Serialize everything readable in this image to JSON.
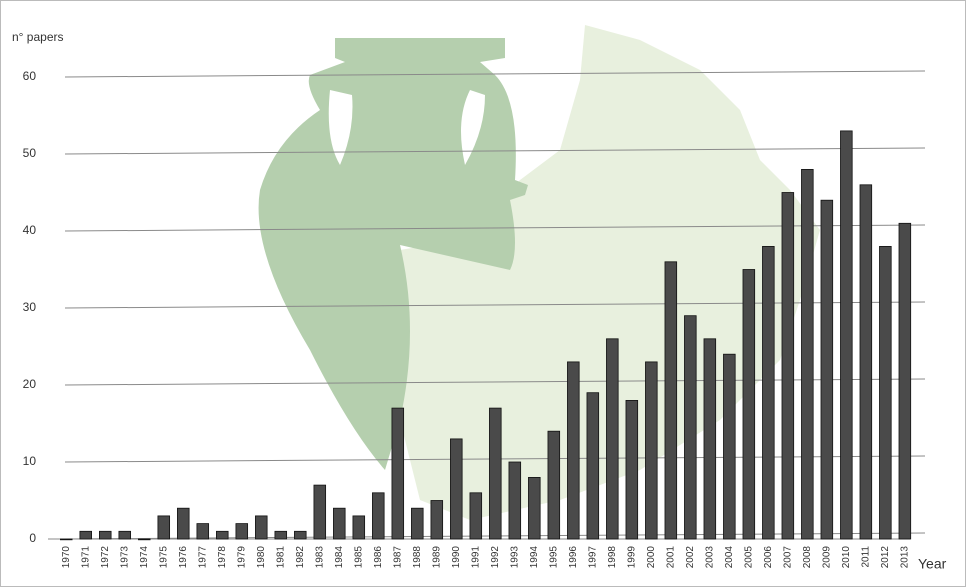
{
  "chart_data": {
    "type": "bar",
    "y_label": "n° papers",
    "x_label": "Year",
    "categories": [
      "1970",
      "1971",
      "1972",
      "1973",
      "1974",
      "1975",
      "1976",
      "1977",
      "1978",
      "1979",
      "1980",
      "1981",
      "1982",
      "1983",
      "1984",
      "1985",
      "1986",
      "1987",
      "1988",
      "1989",
      "1990",
      "1991",
      "1992",
      "1993",
      "1994",
      "1995",
      "1996",
      "1997",
      "1998",
      "1999",
      "2000",
      "2001",
      "2002",
      "2003",
      "2004",
      "2005",
      "2006",
      "2007",
      "2008",
      "2009",
      "2010",
      "2011",
      "2012",
      "2013"
    ],
    "values": [
      0,
      1,
      1,
      1,
      0,
      3,
      4,
      2,
      1,
      2,
      3,
      1,
      1,
      7,
      4,
      3,
      6,
      17,
      4,
      5,
      13,
      6,
      17,
      10,
      8,
      14,
      23,
      19,
      26,
      18,
      23,
      36,
      29,
      26,
      24,
      35,
      38,
      45,
      48,
      44,
      53,
      46,
      38,
      41
    ],
    "color": "#4a4a4a",
    "ylim": [
      0,
      60
    ],
    "yticks": [
      0,
      10,
      20,
      30,
      40,
      50,
      60
    ],
    "grid": true
  }
}
